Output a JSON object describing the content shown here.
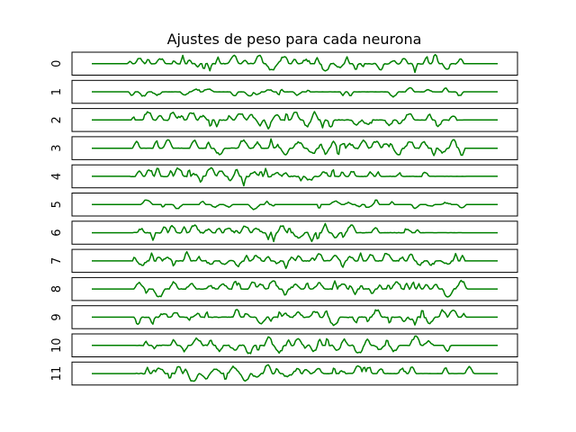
{
  "chart_data": {
    "type": "line",
    "title": "Ajustes de peso para cada neurona",
    "color": "#008000",
    "axes_visible": false,
    "grid": false,
    "panels": [
      {
        "label": "0",
        "profile": "rising-right"
      },
      {
        "label": "1",
        "profile": "sparse-dips"
      },
      {
        "label": "2",
        "profile": "dense-mid"
      },
      {
        "label": "3",
        "profile": "dense-mid-right"
      },
      {
        "label": "4",
        "profile": "dense-left-mid"
      },
      {
        "label": "5",
        "profile": "small-dips"
      },
      {
        "label": "6",
        "profile": "dense-left-mid"
      },
      {
        "label": "7",
        "profile": "spiky"
      },
      {
        "label": "8",
        "profile": "rising-right"
      },
      {
        "label": "9",
        "profile": "rising-right"
      },
      {
        "label": "10",
        "profile": "dense-mid"
      },
      {
        "label": "11",
        "profile": "dense-left"
      }
    ]
  }
}
